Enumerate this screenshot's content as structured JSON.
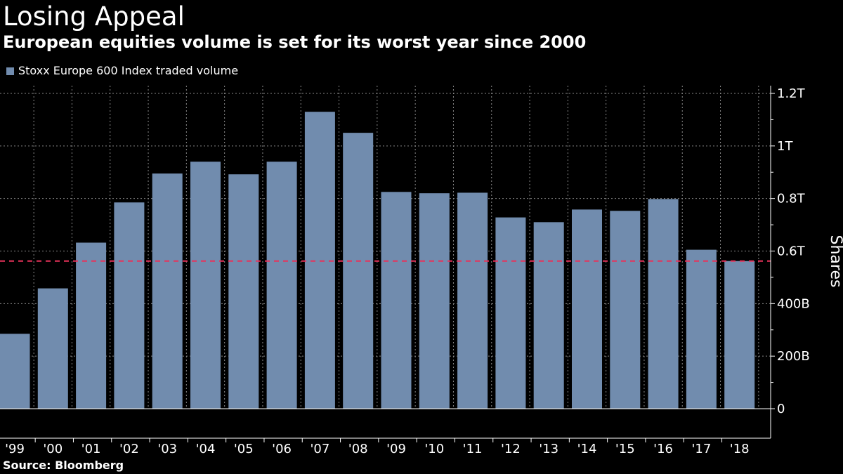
{
  "title": "Losing Appeal",
  "subtitle": "European equities volume is set for its worst year since 2000",
  "source": "Source: Bloomberg",
  "colors": {
    "bar": "#718cae",
    "reference_line": "#e8325a",
    "grid": "#888888",
    "background": "#000000"
  },
  "chart_data": {
    "type": "bar",
    "title": "Losing Appeal",
    "subtitle": "European equities volume is set for its worst year since 2000",
    "xlabel": "",
    "ylabel": "Shares",
    "legend": "top-left",
    "grid": true,
    "series": [
      {
        "name": "Stoxx Europe 600 Index traded volume",
        "values": [
          285,
          458,
          632,
          785,
          895,
          940,
          892,
          940,
          1130,
          1050,
          825,
          820,
          822,
          728,
          710,
          758,
          753,
          798,
          605,
          562
        ]
      }
    ],
    "categories": [
      "'99",
      "'00",
      "'01",
      "'02",
      "'03",
      "'04",
      "'05",
      "'06",
      "'07",
      "'08",
      "'09",
      "'10",
      "'11",
      "'12",
      "'13",
      "'14",
      "'15",
      "'16",
      "'17",
      "'18"
    ],
    "units": "billions of shares",
    "ylim": [
      0,
      1200
    ],
    "yticks": [
      0,
      200,
      400,
      600,
      800,
      1000,
      1200
    ],
    "ytick_labels": [
      "0",
      "200B",
      "400B",
      "0.6T",
      "0.8T",
      "1T",
      "1.2T"
    ],
    "reference_line": {
      "value": 562,
      "style": "dashed"
    }
  }
}
